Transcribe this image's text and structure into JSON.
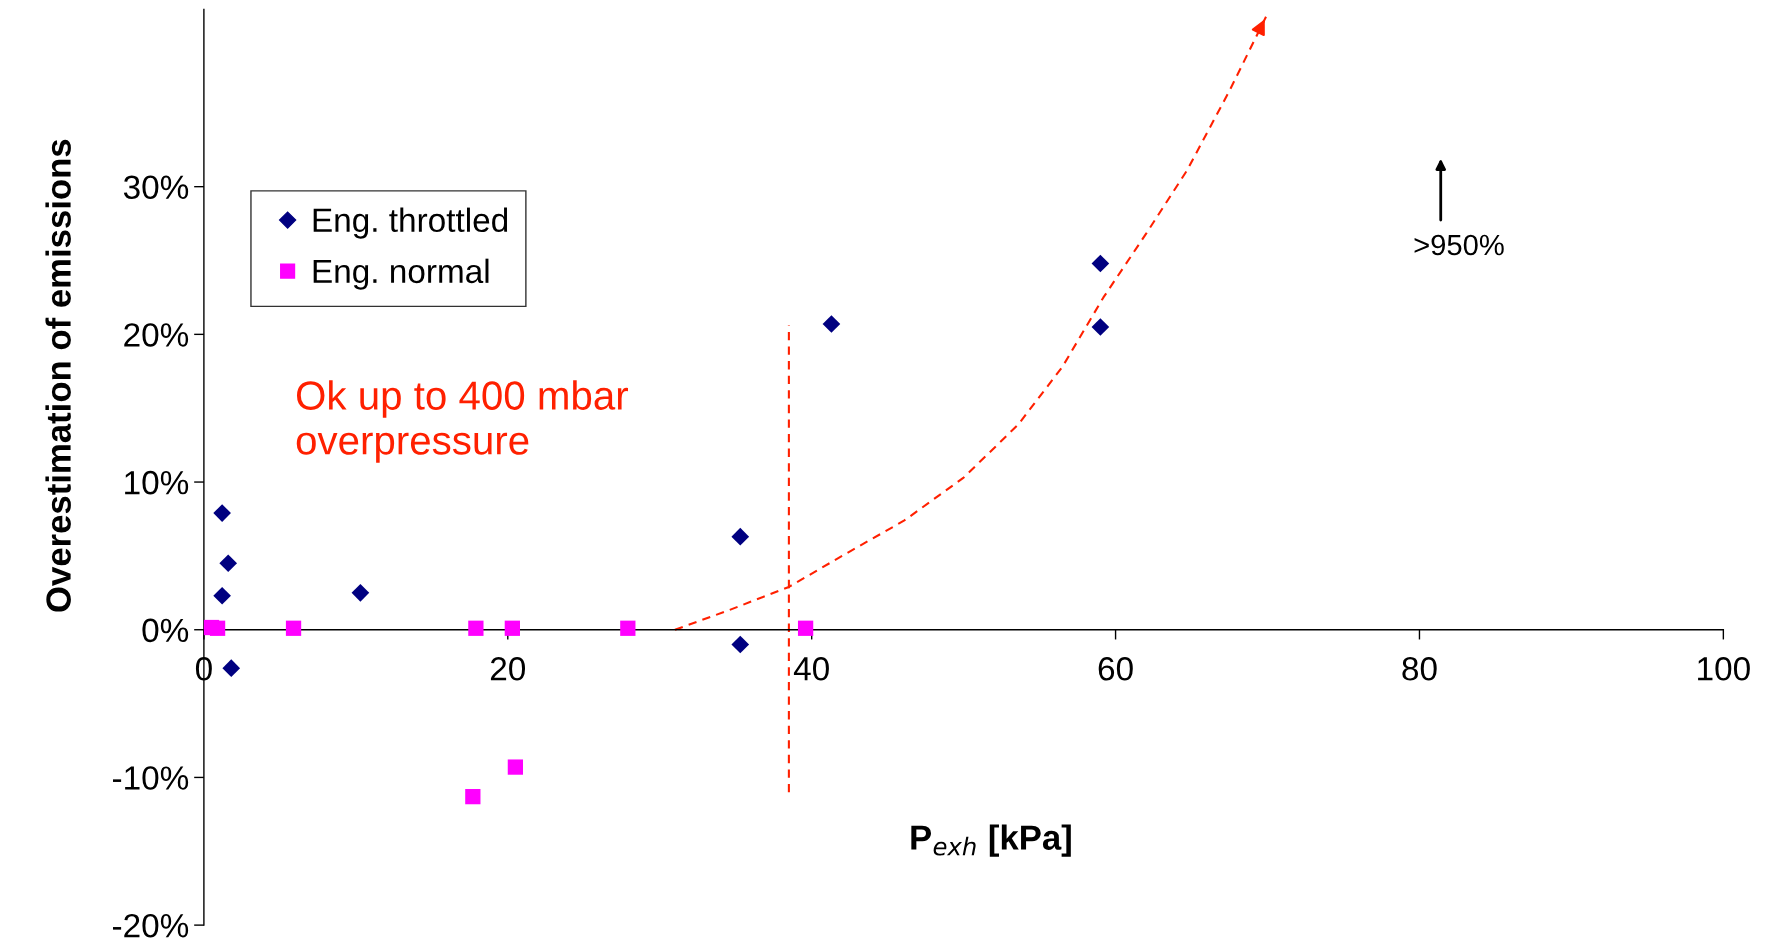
{
  "chart_data": {
    "type": "scatter",
    "xlabel": "P$_{exh}$ [kPa]",
    "ylabel": "Overestimation of emissions",
    "xlim": [
      0,
      100
    ],
    "xticks": [
      0,
      20,
      40,
      60,
      80,
      100
    ],
    "ylim": [
      -20,
      42
    ],
    "yticks": [
      {
        "value": -20,
        "label": "-20%"
      },
      {
        "value": -10,
        "label": "-10%"
      },
      {
        "value": 0,
        "label": "0%"
      },
      {
        "value": 10,
        "label": "10%"
      },
      {
        "value": 20,
        "label": "20%"
      },
      {
        "value": 30,
        "label": "30%"
      }
    ],
    "grid": false,
    "legend": "top left",
    "series": [
      {
        "name": "Eng. throttled",
        "color": "#000080",
        "marker": "diamond",
        "x": [
          1.2,
          1.6,
          1.2,
          1.8,
          10.3,
          35.3,
          35.3,
          41.3,
          59.0,
          59.0
        ],
        "values": [
          7.9,
          4.5,
          2.3,
          -2.6,
          2.5,
          6.3,
          -1.0,
          20.7,
          24.8,
          20.5
        ]
      },
      {
        "name": "Eng. normal",
        "color": "#ff00ff",
        "marker": "square",
        "x": [
          0.5,
          0.9,
          5.9,
          17.9,
          20.3,
          27.9,
          39.6,
          17.7,
          20.5
        ],
        "values": [
          0.15,
          0.1,
          0.1,
          0.1,
          0.1,
          0.1,
          0.1,
          -11.3,
          -9.3
        ]
      },
      {
        "type": "line",
        "color": "#ff2000",
        "marker": "none",
        "line_style": "dashed",
        "x": [
          31.0,
          34.5,
          38.5,
          42.0,
          46.1,
          50.0,
          53.6,
          56.5,
          59.2,
          62.0,
          64.7,
          67.5,
          69.9
        ],
        "values": [
          0.0,
          1.3,
          2.9,
          5.0,
          7.4,
          10.3,
          13.9,
          17.8,
          22.5,
          26.8,
          31.1,
          36.5,
          41.5
        ]
      }
    ],
    "ref_lines": [
      {
        "axis": "x",
        "value": 38.5,
        "color": "#ff2000",
        "line_style": "dashed"
      }
    ],
    "annotations": [
      "Ok up to 400 mbar\noverpressure",
      ">950%"
    ]
  }
}
